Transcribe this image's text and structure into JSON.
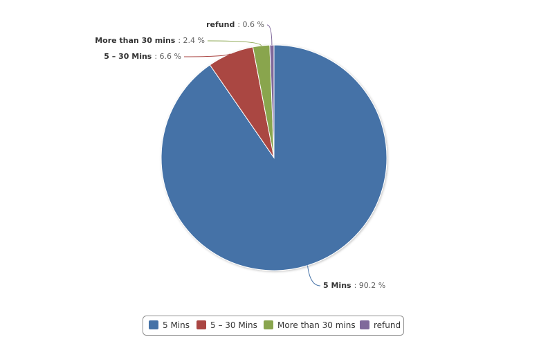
{
  "chart_data": {
    "type": "pie",
    "categories": [
      "5 Mins",
      "5 – 30 Mins",
      "More than 30 mins",
      "refund"
    ],
    "values": [
      90.2,
      6.6,
      2.4,
      0.6
    ],
    "value_labels": [
      ": 90.2 %",
      ": 6.6 %",
      ": 2.4 %",
      ": 0.6 %"
    ],
    "colors": [
      "#4572a7",
      "#aa4643",
      "#89a54e",
      "#80699b"
    ],
    "legend": "bottom"
  }
}
